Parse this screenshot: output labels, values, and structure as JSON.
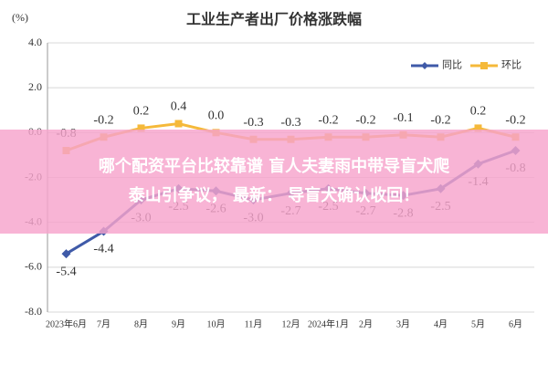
{
  "chart_data": {
    "type": "line",
    "title": "工业生产者出厂价格涨跌幅",
    "y_unit": "(%)",
    "categories": [
      "2023年6月",
      "7月",
      "8月",
      "9月",
      "10月",
      "11月",
      "12月",
      "2024年1月",
      "2月",
      "3月",
      "4月",
      "5月",
      "6月"
    ],
    "series": [
      {
        "name": "同比",
        "color": "#3f5aa8",
        "marker": "diamond",
        "values": [
          -5.4,
          -4.4,
          -3.0,
          -2.5,
          -2.6,
          -3.0,
          -2.7,
          -2.5,
          -2.7,
          -2.8,
          -2.5,
          -1.4,
          -0.8
        ],
        "value_labels": [
          "-5.4",
          "-4.4",
          "-3.0",
          "-2.5",
          "-2.6",
          "-3.0",
          "-2.7",
          "-2.5",
          "-2.7",
          "-2.8",
          "-2.5",
          "-1.4",
          "-0.8"
        ]
      },
      {
        "name": "环比",
        "color": "#f5b93a",
        "marker": "square",
        "values": [
          -0.8,
          -0.2,
          0.2,
          0.4,
          0,
          -0.3,
          -0.3,
          -0.2,
          -0.2,
          -0.1,
          -0.2,
          0.2,
          -0.2
        ],
        "value_labels": [
          "-0.8",
          "-0.2",
          "0.2",
          "0.4",
          "0.0",
          "-0.3",
          "-0.3",
          "-0.2",
          "-0.2",
          "-0.1",
          "-0.2",
          "0.2",
          "-0.2"
        ]
      }
    ],
    "ylim": [
      -8,
      4
    ],
    "yticks": [
      {
        "value": -8,
        "label": "-8.0"
      },
      {
        "value": -6,
        "label": "-6.0"
      },
      {
        "value": -4,
        "label": "-4.0"
      },
      {
        "value": -2,
        "label": "-2.0"
      },
      {
        "value": 0,
        "label": "0.0"
      },
      {
        "value": 2,
        "label": "2.0"
      },
      {
        "value": 4,
        "label": "4.0"
      }
    ],
    "grid": true,
    "legend": "top-right"
  },
  "overlay": {
    "lines": [
      "哪个配资平台比较靠谱 盲人夫妻雨中带导盲犬爬",
      "泰山引争议， 最新： 导盲犬确认收回！"
    ]
  }
}
